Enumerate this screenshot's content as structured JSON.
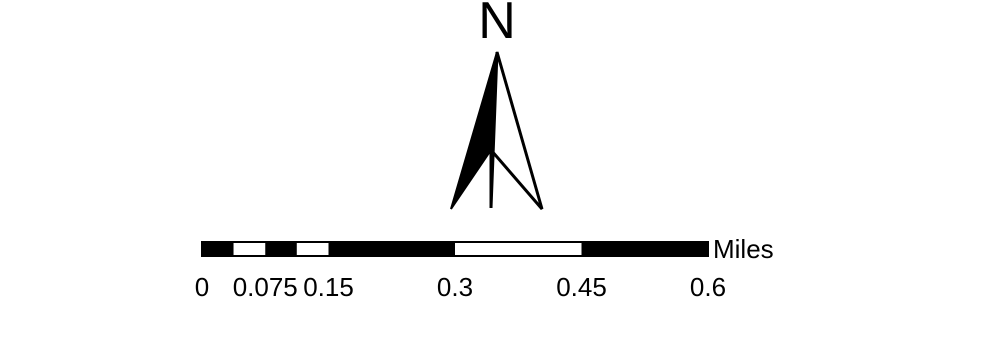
{
  "north_arrow": {
    "label": "N",
    "fill_color": "#000000",
    "outline_color": "#000000",
    "light_color": "#ffffff"
  },
  "scale_bar": {
    "units": "Miles",
    "ticks": [
      {
        "value": 0,
        "label": "0"
      },
      {
        "value": 0.075,
        "label": "0.075"
      },
      {
        "value": 0.15,
        "label": "0.15"
      },
      {
        "value": 0.3,
        "label": "0.3"
      },
      {
        "value": 0.45,
        "label": "0.45"
      },
      {
        "value": 0.6,
        "label": "0.6"
      }
    ],
    "segments": [
      {
        "from": 0,
        "to": 0.0375,
        "color": "#000000"
      },
      {
        "from": 0.0375,
        "to": 0.075,
        "color": "#ffffff"
      },
      {
        "from": 0.075,
        "to": 0.1125,
        "color": "#000000"
      },
      {
        "from": 0.1125,
        "to": 0.15,
        "color": "#ffffff"
      },
      {
        "from": 0.15,
        "to": 0.3,
        "color": "#000000"
      },
      {
        "from": 0.3,
        "to": 0.45,
        "color": "#ffffff"
      },
      {
        "from": 0.45,
        "to": 0.6,
        "color": "#000000"
      }
    ],
    "max_value": 0.6
  }
}
